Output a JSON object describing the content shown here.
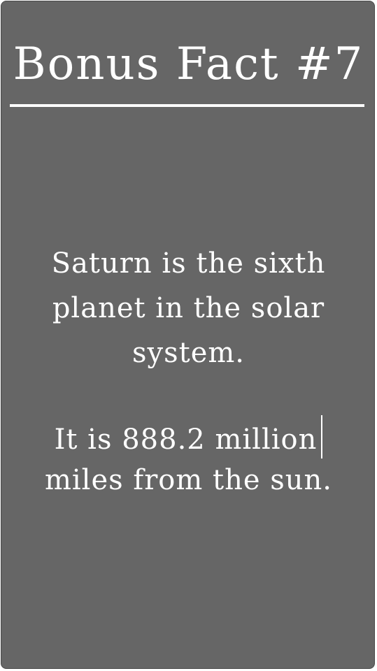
{
  "card": {
    "title": "Bonus Fact #7",
    "paragraph_1": {
      "lines": [
        "Saturn is the sixth",
        "planet in the solar",
        "system."
      ]
    },
    "paragraph_2": {
      "lines": [
        "It is 888.2 million",
        "miles from the sun."
      ]
    },
    "colors": {
      "background": "#666666",
      "text": "#ffffff"
    }
  }
}
